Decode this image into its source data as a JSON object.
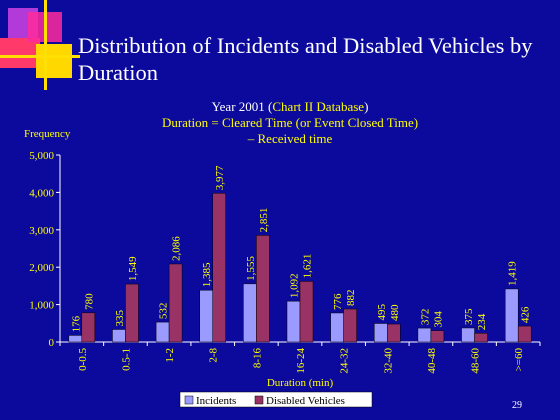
{
  "slide": {
    "title": "Distribution of Incidents and Disabled Vehicles by Duration",
    "subtitle_line1_a": "Year 2001 (",
    "subtitle_line1_b": "Chart II Database",
    "subtitle_line1_c": ")",
    "subtitle_line2": "Duration = Cleared Time (or Event Closed Time)",
    "subtitle_line3": "– Received time",
    "page_number": "29"
  },
  "colors": {
    "background": "#0c0a9c",
    "incidents": "#9a9aff",
    "disabled": "#993366",
    "accent_text": "#ffff00"
  },
  "chart_data": {
    "type": "bar",
    "categories": [
      "0-0.5",
      "0.5-1",
      "1-2",
      "2-8",
      "8-16",
      "16-24",
      "24-32",
      "32-40",
      "40-48",
      "48-60",
      ">=60"
    ],
    "series": [
      {
        "name": "Incidents",
        "values": [
          176,
          335,
          532,
          1385,
          1555,
          1092,
          776,
          495,
          372,
          375,
          1419
        ]
      },
      {
        "name": "Disabled Vehicles",
        "values": [
          780,
          1549,
          2086,
          3977,
          2851,
          1621,
          882,
          480,
          304,
          234,
          426
        ]
      }
    ],
    "ylabel": "Frequency",
    "xlabel": "Duration (min)",
    "ylim": [
      0,
      5000
    ],
    "yticks": [
      0,
      1000,
      2000,
      3000,
      4000,
      5000
    ],
    "ytick_labels": [
      "0",
      "1,000",
      "2,000",
      "3,000",
      "4,000",
      "5,000"
    ],
    "data_labels_incidents": [
      "176",
      "335",
      "532",
      "1,385",
      "1,555",
      "1,092",
      "776",
      "495",
      "372",
      "375",
      "1,419"
    ],
    "data_labels_disabled": [
      "780",
      "1,549",
      "2,086",
      "3,977",
      "2,851",
      "1,621",
      "882",
      "480",
      "304",
      "234",
      "426"
    ],
    "legend_position": "bottom",
    "grid": false
  }
}
